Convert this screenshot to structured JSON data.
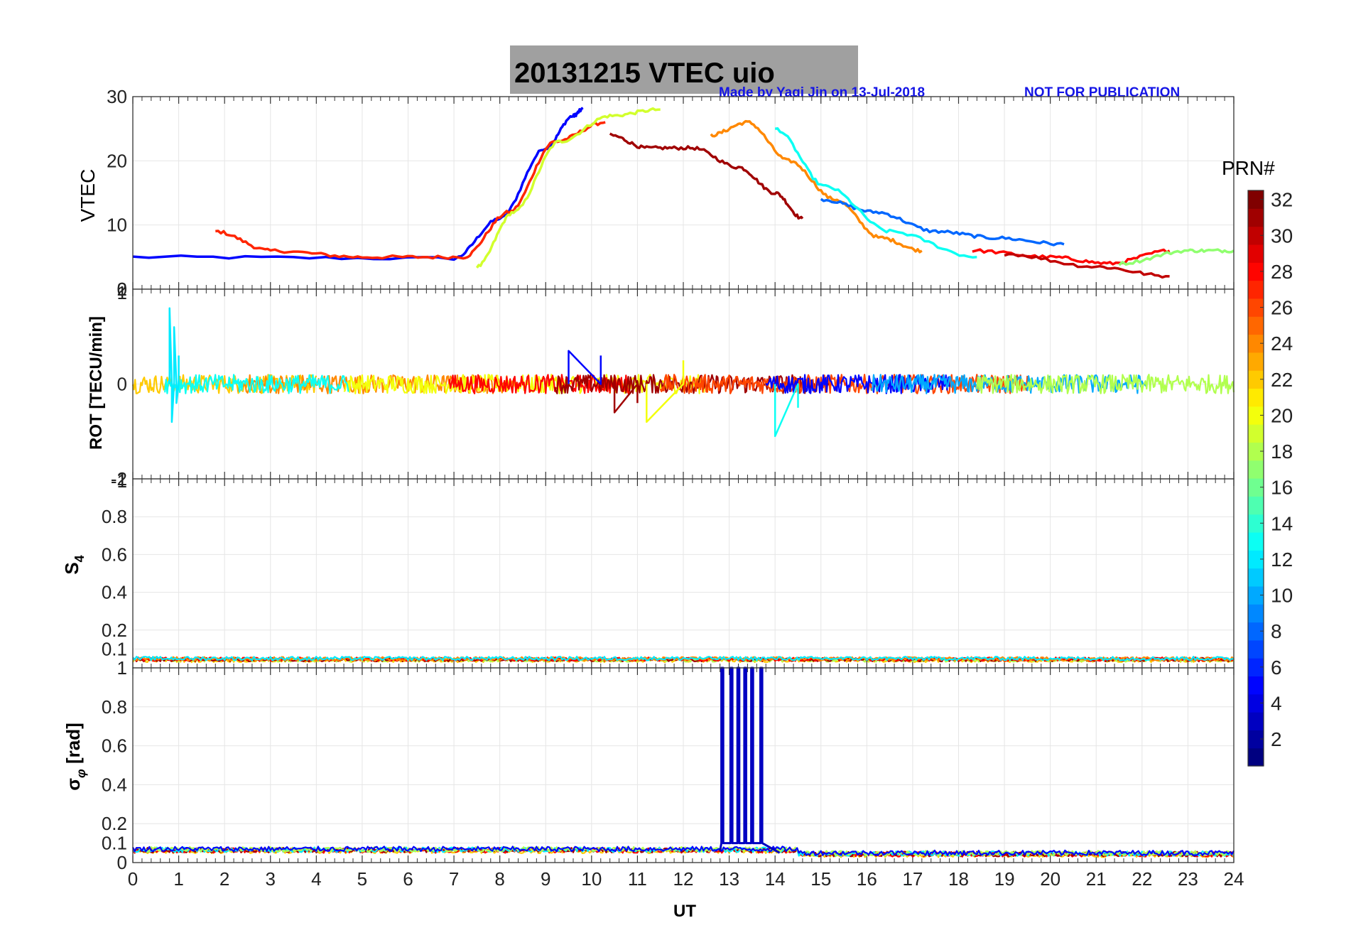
{
  "figure": {
    "title": "20131215    VTEC  uio",
    "credit": "Made by Yaqi Jin on 13-Jul-2018",
    "notice": "NOT FOR PUBLICATION",
    "x_axis_label": "UT",
    "title_bg_color": "#a0a0a0",
    "credit_color": "#1414e6"
  },
  "colorbar": {
    "label": "PRN#",
    "range": [
      1,
      32
    ],
    "ticks": [
      "2",
      "4",
      "6",
      "8",
      "10",
      "12",
      "14",
      "16",
      "18",
      "20",
      "22",
      "24",
      "26",
      "28",
      "30",
      "32"
    ],
    "colormap": "jet"
  },
  "chart_data": [
    {
      "id": "vtec",
      "type": "line",
      "ylabel": "VTEC",
      "xlim": [
        0,
        24
      ],
      "ylim": [
        0,
        30
      ],
      "yticks": [
        "0",
        "10",
        "20",
        "30"
      ],
      "xticks": [
        "0",
        "1",
        "2",
        "3",
        "4",
        "5",
        "6",
        "7",
        "8",
        "9",
        "10",
        "11",
        "12",
        "13",
        "14",
        "15",
        "16",
        "17",
        "18",
        "19",
        "20",
        "21",
        "22",
        "23",
        "24"
      ],
      "series": [
        {
          "prn": 5,
          "x": [
            0,
            7.0,
            8.0,
            9.0,
            9.6,
            9.8
          ],
          "y": [
            5,
            4.8,
            11,
            22,
            27,
            28
          ]
        },
        {
          "prn": 27,
          "x": [
            1.8,
            3,
            5,
            7.2,
            8.2,
            9.2,
            10.3
          ],
          "y": [
            9,
            6,
            5,
            5,
            12,
            23,
            26
          ]
        },
        {
          "prn": 19,
          "x": [
            7.5,
            8.3,
            9.3,
            10.4,
            11.5
          ],
          "y": [
            3.5,
            12,
            23,
            27,
            28
          ]
        },
        {
          "prn": 31,
          "x": [
            10.4,
            11.2,
            12.2,
            13.2,
            14.0,
            14.6
          ],
          "y": [
            24,
            22,
            22,
            19,
            15,
            11
          ]
        },
        {
          "prn": 24,
          "x": [
            12.6,
            13.4,
            14.3,
            15.3,
            16.3,
            17.2
          ],
          "y": [
            24,
            26,
            20,
            14,
            8,
            6
          ]
        },
        {
          "prn": 8,
          "x": [
            15.0,
            16.2,
            17.5,
            18.8,
            20.3
          ],
          "y": [
            14,
            12,
            9,
            8,
            7
          ]
        },
        {
          "prn": 13,
          "x": [
            14.0,
            15.1,
            16.5,
            18.4
          ],
          "y": [
            25,
            16,
            9,
            5
          ]
        },
        {
          "prn": 28,
          "x": [
            18.3,
            20.0,
            21.3,
            22.6
          ],
          "y": [
            6,
            5,
            4,
            6
          ]
        },
        {
          "prn": 30,
          "x": [
            19.0,
            21.0,
            22.6
          ],
          "y": [
            5.5,
            3.5,
            2
          ]
        },
        {
          "prn": 17,
          "x": [
            21.5,
            23.0,
            24.0
          ],
          "y": [
            4,
            6,
            6
          ]
        }
      ]
    },
    {
      "id": "rot",
      "type": "line",
      "ylabel": "ROT [TECU/min]",
      "xlim": [
        0,
        24
      ],
      "ylim": [
        -2,
        2
      ],
      "yticks": [
        "-2",
        "0",
        "2"
      ],
      "extra_tick_labels": [
        "1",
        "-1"
      ],
      "series": [
        {
          "prn": 12,
          "x": [
            0.8,
            0.85,
            0.9,
            0.95,
            1.0
          ],
          "y": [
            1.6,
            -0.8,
            1.2,
            -0.4,
            0.6
          ]
        },
        {
          "prn": 5,
          "x": [
            9.5,
            10.2
          ],
          "y": [
            0.7,
            0.6
          ]
        },
        {
          "prn": 31,
          "x": [
            10.5,
            11.0
          ],
          "y": [
            -0.6,
            -0.4
          ]
        },
        {
          "prn": 20,
          "x": [
            11.2,
            12.0
          ],
          "y": [
            -0.8,
            0.5
          ]
        },
        {
          "prn": 13,
          "x": [
            14.0,
            14.5
          ],
          "y": [
            -1.1,
            -0.5
          ]
        }
      ],
      "baseline_noise_amplitude": 0.2
    },
    {
      "id": "s4",
      "type": "line",
      "ylabel": "S4",
      "xlim": [
        0,
        24
      ],
      "ylim": [
        0,
        1
      ],
      "yticks": [
        "0.1",
        "0.2",
        "0.4",
        "0.6",
        "0.8",
        "1"
      ],
      "baseline_level": 0.04,
      "baseline_noise_amplitude": 0.02
    },
    {
      "id": "sigma_phi",
      "type": "line",
      "ylabel": "σφ [rad]",
      "xlim": [
        0,
        24
      ],
      "ylim": [
        0,
        1
      ],
      "yticks": [
        "0",
        "0.1",
        "0.2",
        "0.4",
        "0.6",
        "0.8",
        "1"
      ],
      "baseline_level": 0.06,
      "baseline_noise_amplitude": 0.025,
      "spikes": {
        "prn": 3,
        "x": [
          12.85,
          13.05,
          13.2,
          13.35,
          13.5,
          13.7
        ],
        "y": 1.0
      }
    }
  ]
}
